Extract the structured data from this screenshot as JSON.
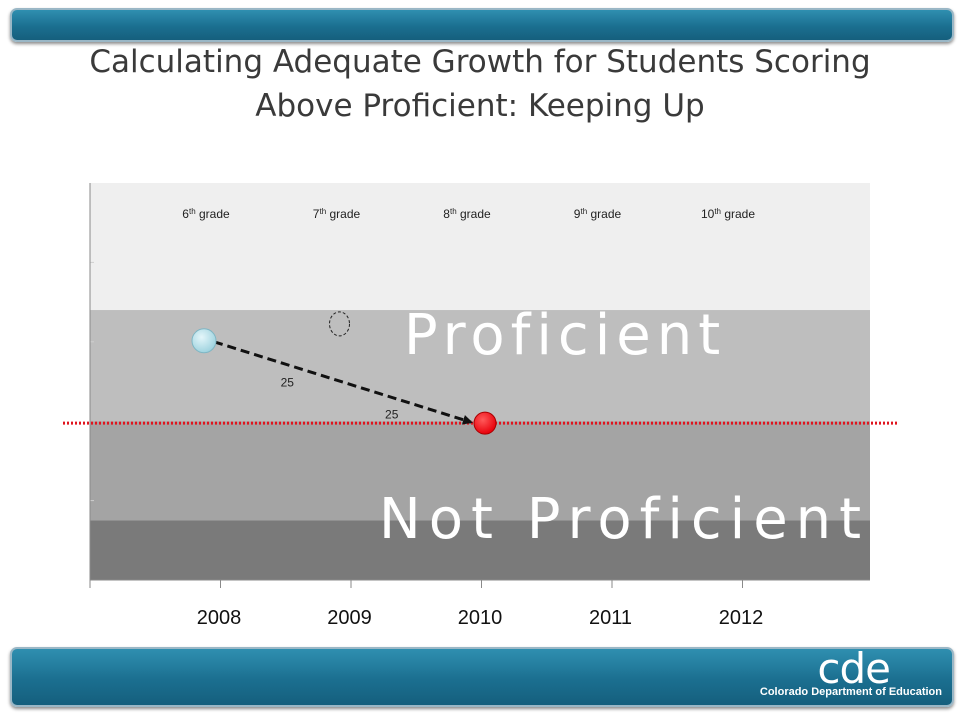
{
  "title": "Calculating Adequate Growth for Students Scoring Above Proficient: Keeping Up",
  "logo": {
    "mark": "cde",
    "name": "Colorado Department of Education"
  },
  "colors": {
    "banner": "#1b6f90",
    "region_above": "#efefef",
    "region_proficient": "#bebebe",
    "region_not_proficient": "#a4a4a4",
    "region_bottom": "#7a7a7a",
    "start_point": "#9fd3df",
    "end_point": "#e8000b",
    "cut_line": "#e0141e"
  },
  "chart_data": {
    "type": "scatter",
    "x_categories": [
      "2008",
      "2009",
      "2010",
      "2011",
      "2012"
    ],
    "grade_labels": [
      {
        "base": "6",
        "sup": "th",
        "rest": " grade"
      },
      {
        "base": "7",
        "sup": "th",
        "rest": " grade"
      },
      {
        "base": "8",
        "sup": "th",
        "rest": " grade"
      },
      {
        "base": "9",
        "sup": "th",
        "rest": " grade"
      },
      {
        "base": "10",
        "sup": "th",
        "rest": " grade"
      }
    ],
    "ylim": [
      0,
      100
    ],
    "regions": [
      {
        "label": "",
        "from": 68,
        "to": 100
      },
      {
        "label": "Proficient",
        "from": 40,
        "to": 68
      },
      {
        "label": "Not Proficient",
        "from": 15,
        "to": 40
      },
      {
        "label": "",
        "from": 0,
        "to": 15
      }
    ],
    "proficient_cut": 39,
    "points": [
      {
        "x": "2008",
        "y": 60,
        "style": "start"
      },
      {
        "x": "2009",
        "y": 63,
        "style": "projected-empty"
      },
      {
        "x": "2010",
        "y": 39,
        "style": "target"
      }
    ],
    "path": {
      "from": 0,
      "to": 2,
      "style": "dashed-arrow"
    },
    "path_labels": [
      {
        "text": "25",
        "x": "2008.6",
        "y": 50
      },
      {
        "text": "25",
        "x": "2009.4",
        "y": 42
      }
    ]
  }
}
